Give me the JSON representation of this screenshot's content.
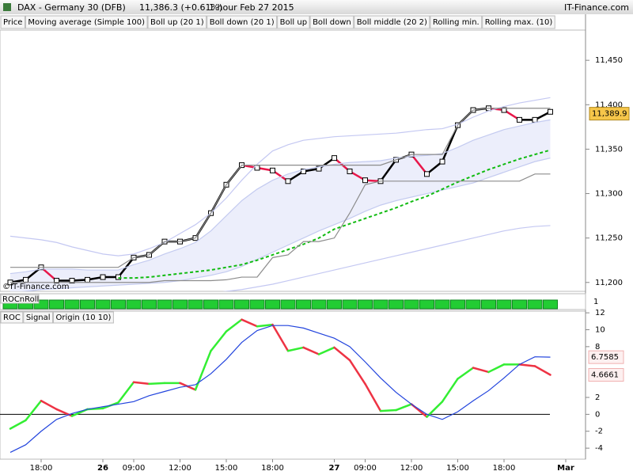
{
  "header": {
    "title": "DAX - Germany 30 (DFB)",
    "quote": "11,386.3 (+0.61%)",
    "period": "1 hour Feb 27 2015",
    "brand": "IT-Finance.com"
  },
  "chart_data": [
    {
      "type": "line",
      "copyright": "©IT-Finance.com",
      "categories": [
        null,
        null,
        "18:00",
        null,
        null,
        null,
        "26",
        null,
        "09:00",
        null,
        null,
        "12:00",
        null,
        null,
        "15:00",
        null,
        null,
        "18:00",
        null,
        null,
        null,
        "27",
        null,
        "09:00",
        null,
        null,
        "12:00",
        null,
        null,
        "15:00",
        null,
        null,
        "18:00",
        null,
        null,
        null,
        "Mar"
      ],
      "ylim": [
        11190,
        11484
      ],
      "yticks": [
        {
          "value": 11200,
          "label": "11,200"
        },
        {
          "value": 11250,
          "label": "11,250"
        },
        {
          "value": 11300,
          "label": "11,300"
        },
        {
          "value": 11350,
          "label": "11,350"
        },
        {
          "value": 11400,
          "label": "11,400"
        },
        {
          "value": 11450,
          "label": "11,450"
        }
      ],
      "last_price": {
        "value": 11389.9,
        "label": "11,389.9"
      },
      "series": [
        {
          "name": "Price",
          "color": "#000000",
          "down_color": "#e8174a",
          "markers": true,
          "values": [
            11200,
            11203,
            11217,
            11202,
            11202,
            11203,
            11206,
            11206,
            11228,
            11231,
            11246,
            11246,
            11250,
            11278,
            11310,
            11332,
            11329,
            11326,
            11314,
            11325,
            11328,
            11340,
            11325,
            11315,
            11314,
            11338,
            11344,
            11322,
            11336,
            11377,
            11394,
            11396,
            11394,
            11383,
            11383,
            11392,
            null
          ]
        },
        {
          "name": "Moving average (Simple 100)",
          "color": "#3a3ad0",
          "values": [
            null,
            null,
            null,
            null,
            null,
            null,
            null,
            null,
            null,
            null,
            null,
            null,
            null,
            null,
            null,
            null,
            null,
            null,
            null,
            null,
            null,
            null,
            null,
            null,
            null,
            null,
            null,
            null,
            null,
            null,
            null,
            null,
            null,
            null,
            null,
            null,
            null
          ]
        },
        {
          "name": "Boll up (20 1)",
          "color": "#c4cbf0",
          "fill": "#eceefb",
          "values": [
            11210,
            11212,
            11215,
            11215,
            11215,
            11214,
            11214,
            11214,
            11220,
            11225,
            11232,
            11238,
            11245,
            11258,
            11275,
            11292,
            11305,
            11315,
            11322,
            11327,
            11330,
            11333,
            11335,
            11336,
            11337,
            11340,
            11342,
            11343,
            11345,
            11352,
            11360,
            11366,
            11372,
            11376,
            11380,
            11383,
            null
          ]
        },
        {
          "name": "Boll down (20 1)",
          "color": "#c4cbf0",
          "values": [
            11188,
            11190,
            11192,
            11193,
            11194,
            11195,
            11196,
            11197,
            11198,
            11199,
            11200,
            11202,
            11205,
            11208,
            11212,
            11218,
            11226,
            11234,
            11242,
            11250,
            11258,
            11265,
            11272,
            11280,
            11287,
            11292,
            11296,
            11300,
            11304,
            11308,
            11312,
            11318,
            11324,
            11330,
            11336,
            11340,
            null
          ]
        },
        {
          "name": "Boll up",
          "color": "#c4c8f2",
          "values": [
            11252,
            11250,
            11248,
            11245,
            11240,
            11236,
            11232,
            11230,
            11232,
            11238,
            11245,
            11255,
            11265,
            11278,
            11295,
            11315,
            11333,
            11348,
            11355,
            11360,
            11362,
            11364,
            11365,
            11366,
            11367,
            11368,
            11370,
            11372,
            11373,
            11378,
            11386,
            11393,
            11398,
            11402,
            11405,
            11408,
            null
          ]
        },
        {
          "name": "Boll down",
          "color": "#c4c8f2",
          "values": [
            11180,
            11180,
            11180,
            11180,
            11180,
            11180,
            11180,
            11180,
            11180,
            11180,
            11182,
            11184,
            11186,
            11188,
            11190,
            11192,
            11195,
            11198,
            11202,
            11206,
            11210,
            11214,
            11218,
            11222,
            11226,
            11230,
            11234,
            11238,
            11242,
            11246,
            11250,
            11254,
            11258,
            11261,
            11263,
            11264,
            null
          ]
        },
        {
          "name": "Boll middle (20 2)",
          "color": "#11bb11",
          "dash": true,
          "values": [
            null,
            null,
            null,
            null,
            null,
            null,
            null,
            11205,
            11205,
            11206,
            11208,
            11210,
            11212,
            11214,
            11217,
            11220,
            11225,
            11231,
            11237,
            11243,
            11250,
            11260,
            11266,
            11272,
            11278,
            11284,
            11291,
            11297,
            11305,
            11313,
            11320,
            11327,
            11333,
            11339,
            11344,
            11349,
            null
          ]
        },
        {
          "name": "Rolling min.",
          "color": "#8c8c8c",
          "values": [
            11200,
            11200,
            11200,
            11200,
            11200,
            11200,
            11200,
            11200,
            11200,
            11200,
            11202,
            11202,
            11202,
            11202,
            11203,
            11206,
            11206,
            11228,
            11231,
            11246,
            11246,
            11250,
            11278,
            11310,
            11314,
            11314,
            11314,
            11314,
            11314,
            11314,
            11314,
            11314,
            11314,
            11314,
            11322,
            11322,
            null
          ]
        },
        {
          "name": "Rolling max. (10)",
          "color": "#8c8c8c",
          "values": [
            11217,
            11217,
            11217,
            11217,
            11217,
            11217,
            11217,
            11217,
            11228,
            11231,
            11246,
            11246,
            11250,
            11278,
            11310,
            11332,
            11332,
            11332,
            11332,
            11332,
            11332,
            11332,
            11332,
            11332,
            11332,
            11338,
            11344,
            11344,
            11344,
            11377,
            11394,
            11396,
            11396,
            11396,
            11396,
            11396,
            null
          ]
        }
      ]
    },
    {
      "type": "strip",
      "label": "ROCnRoll",
      "color": "#22cc33",
      "ytick": 1,
      "values": [
        1,
        1,
        1,
        1,
        1,
        1,
        1,
        1,
        1,
        1,
        1,
        1,
        1,
        1,
        1,
        1,
        1,
        1,
        1,
        1,
        1,
        1,
        1,
        1,
        1,
        1,
        1,
        1,
        1,
        1,
        1,
        1,
        1,
        1,
        1,
        1
      ]
    },
    {
      "type": "line",
      "ylim": [
        -5.3,
        12.2
      ],
      "yticks": [
        -4,
        -2,
        0,
        2,
        8,
        10,
        12
      ],
      "origin": {
        "name": "Origin (10 10)",
        "value": 0,
        "color": "#000000"
      },
      "series": [
        {
          "name": "ROC",
          "color": "#33ee33",
          "down_color": "#ee3344",
          "badge": true,
          "values": [
            -1.7,
            -0.7,
            1.6,
            0.6,
            -0.2,
            0.6,
            0.7,
            1.4,
            3.8,
            3.6,
            3.7,
            3.7,
            2.9,
            7.5,
            9.8,
            11.2,
            10.4,
            10.6,
            7.5,
            7.9,
            7.1,
            7.9,
            6.4,
            3.6,
            0.4,
            0.5,
            1.2,
            -0.3,
            1.5,
            4.2,
            5.5,
            5.0,
            5.9,
            5.9,
            5.7,
            4.6661,
            null
          ]
        },
        {
          "name": "Signal",
          "color": "#2244dd",
          "badge": true,
          "values": [
            -4.5,
            -3.6,
            -2.0,
            -0.6,
            0.1,
            0.6,
            0.9,
            1.2,
            1.5,
            2.2,
            2.7,
            3.2,
            3.5,
            4.8,
            6.5,
            8.5,
            9.9,
            10.5,
            10.5,
            10.2,
            9.6,
            9.0,
            8.0,
            6.2,
            4.3,
            2.6,
            1.2,
            0.0,
            -0.6,
            0.3,
            1.6,
            2.8,
            4.3,
            5.9,
            6.8,
            6.7585,
            null
          ]
        }
      ]
    }
  ]
}
